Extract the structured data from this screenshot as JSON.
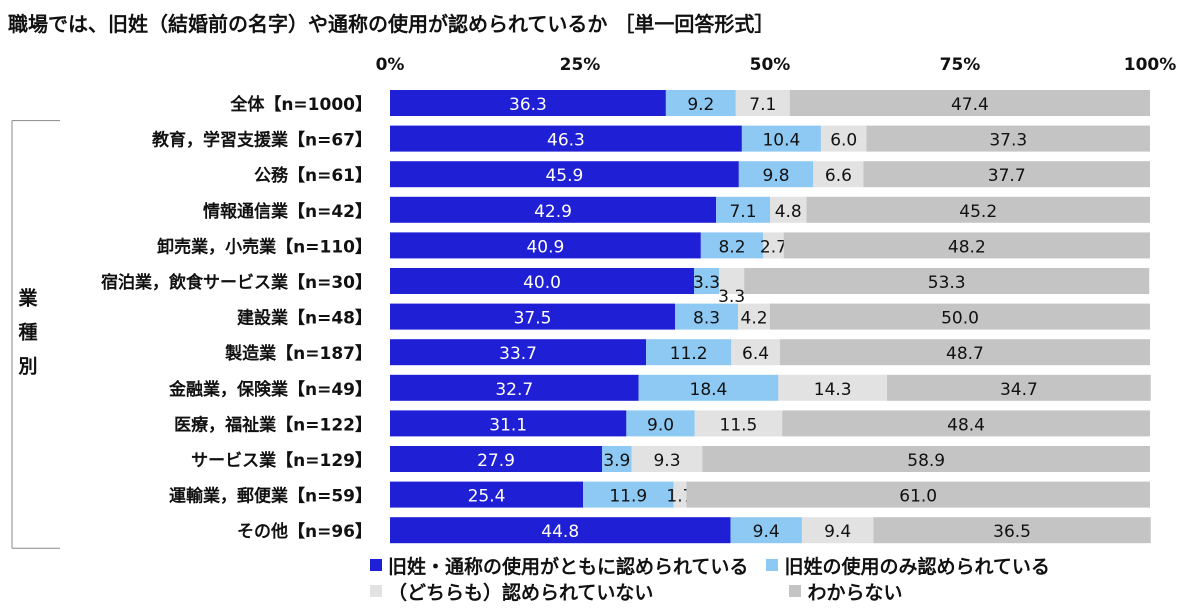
{
  "title": "職場では、旧姓（結婚前の名字）や通称の使用が認められているか ［単一回答形式］",
  "colors": {
    "both": "#1f1fd6",
    "kyusei_only": "#8ec9f3",
    "not_allowed": "#e2e2e2",
    "unknown": "#c4c4c4"
  },
  "chart_data": {
    "type": "bar",
    "orientation": "horizontal",
    "stacked": true,
    "title": "職場では、旧姓（結婚前の名字）や通称の使用が認められているか ［単一回答形式］",
    "xlim": [
      0,
      100
    ],
    "x_ticks": [
      "0%",
      "25%",
      "50%",
      "75%",
      "100%"
    ],
    "group_label": "業種別",
    "legend_position": "bottom",
    "categories": [
      "全体【n=1000】",
      "教育，学習支援業【n=67】",
      "公務【n=61】",
      "情報通信業【n=42】",
      "卸売業，小売業【n=110】",
      "宿泊業，飲食サービス業【n=30】",
      "建設業【n=48】",
      "製造業【n=187】",
      "金融業，保険業【n=49】",
      "医療，福祉業【n=122】",
      "サービス業【n=129】",
      "運輸業，郵便業【n=59】",
      "その他【n=96】"
    ],
    "series": [
      {
        "name": "旧姓・通称の使用がともに認められている",
        "values": [
          36.3,
          46.3,
          45.9,
          42.9,
          40.9,
          40.0,
          37.5,
          33.7,
          32.7,
          31.1,
          27.9,
          25.4,
          44.8
        ]
      },
      {
        "name": "旧姓の使用のみ認められている",
        "values": [
          9.2,
          10.4,
          9.8,
          7.1,
          8.2,
          3.3,
          8.3,
          11.2,
          18.4,
          9.0,
          3.9,
          11.9,
          9.4
        ]
      },
      {
        "name": "（どちらも）認められていない",
        "values": [
          7.1,
          6.0,
          6.6,
          4.8,
          2.7,
          3.3,
          4.2,
          6.4,
          14.3,
          11.5,
          9.3,
          1.7,
          9.4
        ]
      },
      {
        "name": "わからない",
        "values": [
          47.4,
          37.3,
          37.7,
          45.2,
          48.2,
          53.3,
          50.0,
          48.7,
          34.7,
          48.4,
          58.9,
          61.0,
          36.5
        ]
      }
    ]
  }
}
